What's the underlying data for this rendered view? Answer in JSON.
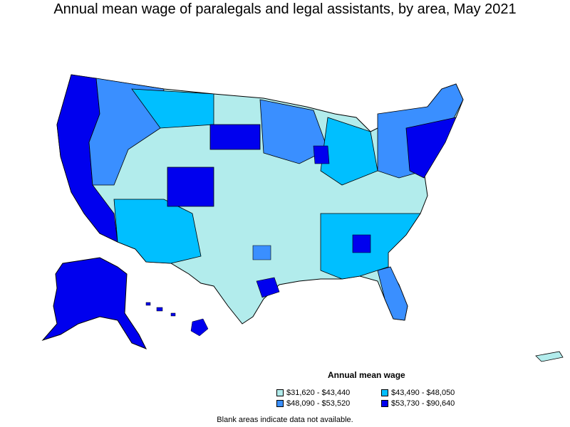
{
  "title": "Annual mean wage of paralegals and legal assistants, by area, May 2021",
  "legend": {
    "title": "Annual mean wage",
    "items": [
      {
        "label": "$31,620 - $43,440",
        "color": "#b2ecec"
      },
      {
        "label": "$43,490 - $48,050",
        "color": "#00bfff"
      },
      {
        "label": "$48,090 - $53,520",
        "color": "#3a8fff"
      },
      {
        "label": "$53,730 - $90,640",
        "color": "#0000ee"
      }
    ]
  },
  "footnote": "Blank areas indicate data not available.",
  "colors": {
    "outline": "#000000",
    "background": "#ffffff"
  }
}
